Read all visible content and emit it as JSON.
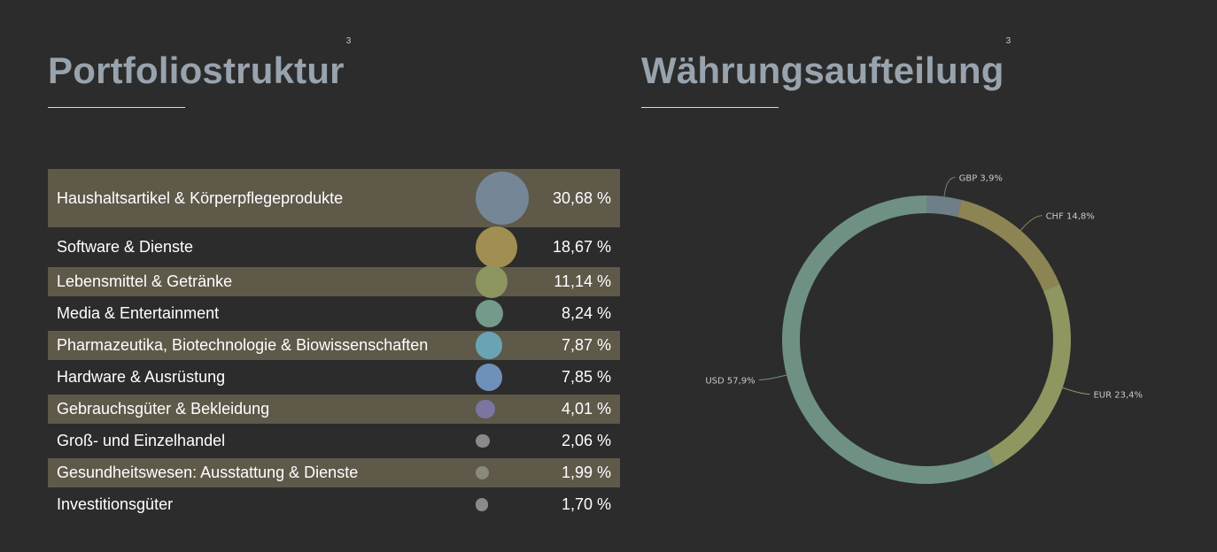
{
  "left": {
    "title": "Portfoliostruktur",
    "footnote": "3"
  },
  "right": {
    "title": "Währungsaufteilung",
    "footnote": "3"
  },
  "chart_data": [
    {
      "type": "table",
      "title": "Portfoliostruktur",
      "rows": [
        {
          "label": "Haushaltsartikel & Körperpflegeprodukte",
          "value": 30.68,
          "value_text": "30,68 %",
          "color": "#758697"
        },
        {
          "label": "Software & Dienste",
          "value": 18.67,
          "value_text": "18,67 %",
          "color": "#a08e52"
        },
        {
          "label": "Lebensmittel & Getränke",
          "value": 11.14,
          "value_text": "11,14 %",
          "color": "#8c9460"
        },
        {
          "label": "Media & Entertainment",
          "value": 8.24,
          "value_text": "8,24 %",
          "color": "#739a8a"
        },
        {
          "label": "Pharmazeutika, Biotechnologie & Biowissenschaften",
          "value": 7.87,
          "value_text": "7,87 %",
          "color": "#6aa4b4"
        },
        {
          "label": "Hardware & Ausrüstung",
          "value": 7.85,
          "value_text": "7,85 %",
          "color": "#6f90b8"
        },
        {
          "label": "Gebrauchsgüter & Bekleidung",
          "value": 4.01,
          "value_text": "4,01 %",
          "color": "#7a76a0"
        },
        {
          "label": "Groß- und Einzelhandel",
          "value": 2.06,
          "value_text": "2,06 %",
          "color": "#8a8a8a"
        },
        {
          "label": "Gesundheitswesen: Ausstattung & Dienste",
          "value": 1.99,
          "value_text": "1,99 %",
          "color": "#8a8a7a"
        },
        {
          "label": "Investitionsgüter",
          "value": 1.7,
          "value_text": "1,70 %",
          "color": "#8a8a8a"
        }
      ]
    },
    {
      "type": "pie",
      "title": "Währungsaufteilung",
      "donut": true,
      "slices": [
        {
          "label": "GBP 3,9%",
          "value": 3.9,
          "color": "#6f7f88",
          "label_side": "right"
        },
        {
          "label": "CHF 14,8%",
          "value": 14.8,
          "color": "#8d8453",
          "label_side": "right"
        },
        {
          "label": "EUR 23,4%",
          "value": 23.4,
          "color": "#8f9660",
          "label_side": "right"
        },
        {
          "label": "USD 57,9%",
          "value": 57.9,
          "color": "#6e9183",
          "label_side": "left"
        }
      ]
    }
  ]
}
